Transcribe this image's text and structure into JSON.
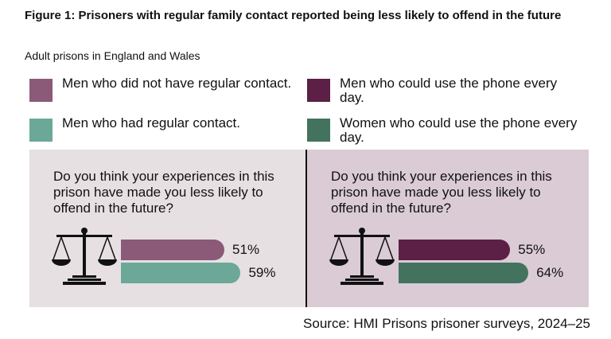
{
  "title": "Figure 1: Prisoners with regular family contact reported being less likely to offend in the future",
  "subtitle": "Adult prisons in England and Wales",
  "source": "Source: HMI Prisons prisoner surveys, 2024–25",
  "chart_data": [
    {
      "type": "bar",
      "orientation": "horizontal",
      "background": "#e6e0e3",
      "question": "Do you think your experiences in this prison have made you less likely to offend in the future?",
      "series": [
        {
          "name": "Men who did not have regular contact.",
          "color": "#8b5a78",
          "values": [
            51
          ],
          "value_labels": [
            "51%"
          ]
        },
        {
          "name": "Men who had regular contact.",
          "color": "#6ba897",
          "values": [
            59
          ],
          "value_labels": [
            "59%"
          ]
        }
      ]
    },
    {
      "type": "bar",
      "orientation": "horizontal",
      "background": "#dacbd5",
      "question": "Do you think your experiences in this prison have made you less likely to offend in the future?",
      "series": [
        {
          "name": "Men who could use the phone every day.",
          "color": "#5c1f45",
          "values": [
            55
          ],
          "value_labels": [
            "55%"
          ]
        },
        {
          "name": "Women who could use the phone every day.",
          "color": "#43735f",
          "values": [
            64
          ],
          "value_labels": [
            "64%"
          ]
        }
      ]
    }
  ]
}
